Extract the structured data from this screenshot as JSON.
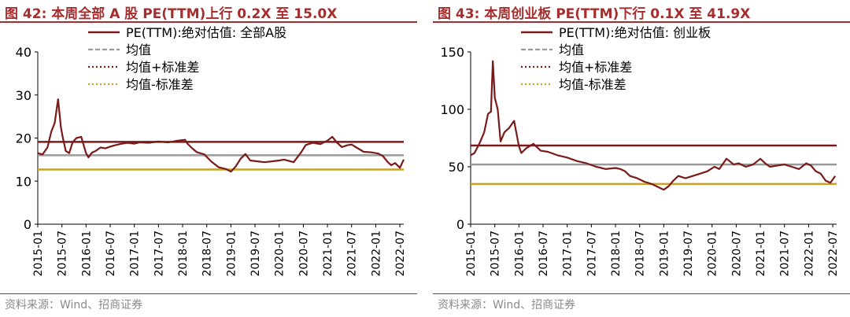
{
  "panels": [
    {
      "title": "图 42:  本周全部 A 股 PE(TTM)上行 0.2X 至 15.0X",
      "source": "资料来源：Wind、招商证券",
      "chart_data": {
        "type": "line",
        "y_ticks": [
          0,
          10,
          20,
          30,
          40
        ],
        "ylim": [
          0,
          40
        ],
        "x_ticks": [
          "2015-01",
          "2015-07",
          "2016-01",
          "2016-07",
          "2017-01",
          "2017-07",
          "2018-01",
          "2018-07",
          "2019-01",
          "2019-07",
          "2020-01",
          "2020-07",
          "2021-01",
          "2021-07",
          "2022-01",
          "2022-07"
        ],
        "legend": [
          {
            "label": "PE(TTM):绝对估值: 全部A股",
            "style": "solid",
            "color": "#7b1a1a"
          },
          {
            "label": "均值",
            "style": "dashed",
            "color": "#9a9a9a"
          },
          {
            "label": "均值+标准差",
            "style": "dotted",
            "color": "#7b1a1a"
          },
          {
            "label": "均值-标准差",
            "style": "dotted",
            "color": "#c8a228"
          }
        ],
        "mean": 16.0,
        "mean_plus_std": 19.1,
        "mean_minus_std": 12.7,
        "series": [
          {
            "name": "PE(TTM):绝对估值: 全部A股",
            "x": [
              2015.0,
              2015.1,
              2015.2,
              2015.28,
              2015.35,
              2015.42,
              2015.48,
              2015.52,
              2015.58,
              2015.65,
              2015.72,
              2015.8,
              2015.9,
              2016.0,
              2016.05,
              2016.12,
              2016.2,
              2016.3,
              2016.4,
              2016.55,
              2016.7,
              2016.85,
              2017.0,
              2017.1,
              2017.3,
              2017.5,
              2017.7,
              2017.9,
              2018.05,
              2018.1,
              2018.2,
              2018.3,
              2018.45,
              2018.6,
              2018.75,
              2018.9,
              2019.0,
              2019.1,
              2019.2,
              2019.3,
              2019.4,
              2019.55,
              2019.7,
              2019.85,
              2020.0,
              2020.1,
              2020.2,
              2020.3,
              2020.45,
              2020.55,
              2020.7,
              2020.85,
              2021.0,
              2021.1,
              2021.2,
              2021.3,
              2021.4,
              2021.5,
              2021.6,
              2021.75,
              2021.9,
              2022.05,
              2022.15,
              2022.25,
              2022.32,
              2022.4,
              2022.5,
              2022.58
            ],
            "y": [
              16.5,
              16.2,
              17.8,
              21.5,
              23.5,
              29.0,
              22.5,
              20.0,
              17.0,
              16.5,
              19.0,
              20.0,
              20.3,
              16.5,
              15.5,
              16.6,
              17.0,
              17.8,
              17.6,
              18.2,
              18.6,
              18.9,
              18.7,
              19.0,
              18.9,
              19.2,
              19.0,
              19.4,
              19.6,
              18.7,
              17.6,
              16.7,
              16.2,
              14.5,
              13.2,
              12.8,
              12.2,
              13.4,
              15.2,
              16.3,
              14.8,
              14.6,
              14.4,
              14.6,
              14.8,
              15.0,
              14.7,
              14.4,
              16.6,
              18.4,
              18.9,
              18.6,
              19.4,
              20.3,
              18.9,
              17.9,
              18.3,
              18.5,
              17.8,
              16.8,
              16.7,
              16.4,
              15.8,
              14.4,
              13.7,
              14.2,
              13.1,
              15.0
            ]
          }
        ]
      }
    },
    {
      "title": "图 43:  本周创业板 PE(TTM)下行 0.1X 至 41.9X",
      "source": "资料来源：Wind、招商证券",
      "chart_data": {
        "type": "line",
        "y_ticks": [
          0,
          50,
          100,
          150
        ],
        "ylim": [
          0,
          150
        ],
        "x_ticks": [
          "2015-01",
          "2015-07",
          "2016-01",
          "2016-07",
          "2017-01",
          "2017-07",
          "2018-01",
          "2018-07",
          "2019-01",
          "2019-07",
          "2020-01",
          "2020-07",
          "2021-01",
          "2021-07",
          "2022-01",
          "2022-07"
        ],
        "legend": [
          {
            "label": "PE(TTM):绝对估值: 创业板",
            "style": "solid",
            "color": "#7b1a1a"
          },
          {
            "label": "均值",
            "style": "dashed",
            "color": "#9a9a9a"
          },
          {
            "label": "均值+标准差",
            "style": "dotted",
            "color": "#7b1a1a"
          },
          {
            "label": "均值-标准差",
            "style": "dotted",
            "color": "#c8a228"
          }
        ],
        "mean": 52,
        "mean_plus_std": 68.5,
        "mean_minus_std": 35,
        "series": [
          {
            "name": "PE(TTM):绝对估值: 创业板",
            "x": [
              2015.0,
              2015.08,
              2015.18,
              2015.28,
              2015.36,
              2015.42,
              2015.46,
              2015.5,
              2015.56,
              2015.62,
              2015.7,
              2015.8,
              2015.9,
              2016.0,
              2016.05,
              2016.15,
              2016.3,
              2016.45,
              2016.6,
              2016.8,
              2017.0,
              2017.2,
              2017.4,
              2017.6,
              2017.8,
              2018.0,
              2018.1,
              2018.2,
              2018.3,
              2018.45,
              2018.6,
              2018.75,
              2018.9,
              2019.0,
              2019.1,
              2019.2,
              2019.3,
              2019.45,
              2019.6,
              2019.75,
              2019.9,
              2020.05,
              2020.15,
              2020.3,
              2020.45,
              2020.55,
              2020.7,
              2020.85,
              2021.0,
              2021.1,
              2021.2,
              2021.35,
              2021.5,
              2021.65,
              2021.8,
              2021.95,
              2022.05,
              2022.15,
              2022.25,
              2022.35,
              2022.45,
              2022.55
            ],
            "y": [
              60,
              62,
              70,
              80,
              96,
              98,
              142,
              110,
              100,
              72,
              80,
              84,
              90,
              68,
              62,
              66,
              70,
              64,
              63,
              60,
              58,
              55,
              53,
              50,
              48,
              49,
              48,
              46,
              42,
              40,
              37,
              35,
              32,
              30,
              33,
              38,
              42,
              40,
              42,
              44,
              46,
              50,
              48,
              57,
              52,
              53,
              50,
              52,
              57,
              53,
              50,
              51,
              52,
              50,
              48,
              53,
              51,
              46,
              44,
              38,
              36,
              41.9
            ]
          }
        ]
      }
    }
  ]
}
